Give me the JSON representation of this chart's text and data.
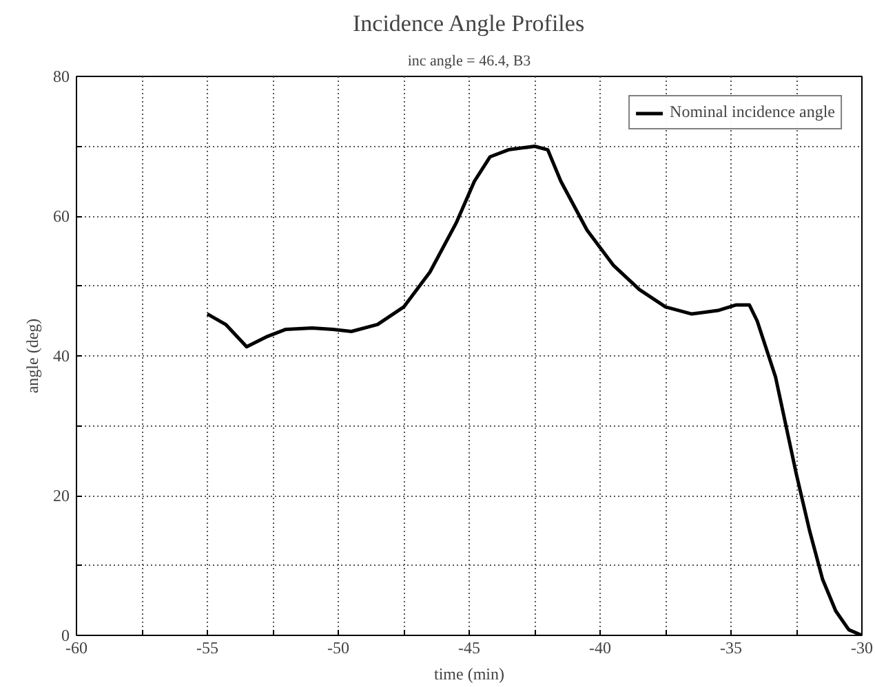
{
  "chart_data": {
    "type": "line",
    "title": "Incidence Angle Profiles",
    "subtitle": "inc angle = 46.4, B3",
    "xlabel": "time (min)",
    "ylabel": "angle (deg)",
    "xlim": [
      -60,
      -30
    ],
    "ylim": [
      0,
      80
    ],
    "xticks": [
      -60,
      {
        "value": -57.5,
        "label": null
      },
      -55,
      {
        "value": -52.5,
        "label": null
      },
      -50,
      {
        "value": -47.5,
        "label": null
      },
      -45,
      {
        "value": -42.5,
        "label": null
      },
      -40,
      {
        "value": -37.5,
        "label": null
      },
      -35,
      {
        "value": -32.5,
        "label": null
      },
      -30
    ],
    "yticks": [
      0,
      {
        "value": 10,
        "label": null
      },
      20,
      {
        "value": 30,
        "label": null
      },
      40,
      {
        "value": 50,
        "label": null
      },
      60,
      {
        "value": 70,
        "label": null
      },
      80
    ],
    "grid": true,
    "legend": "top right",
    "line_style": "solid",
    "marker": "none",
    "x": [
      -55,
      -54.3,
      -53.5,
      -52.7,
      -52,
      -51,
      -50.2,
      -49.5,
      -48.5,
      -47.5,
      -46.5,
      -45.5,
      -44.8,
      -44.2,
      -43.5,
      -42.5,
      -42,
      -41.5,
      -40.5,
      -39.5,
      -38.5,
      -37.5,
      -36.5,
      -35.5,
      -34.8,
      -34.3,
      -34,
      -33.3,
      -32.5,
      -32,
      -31.5,
      -31,
      -30.5,
      -30
    ],
    "series": [
      {
        "name": "Nominal incidence angle",
        "color": "#000000",
        "values": [
          46,
          44.5,
          41.3,
          42.8,
          43.8,
          44,
          43.8,
          43.5,
          44.5,
          47,
          52,
          59,
          65,
          68.5,
          69.5,
          70,
          69.5,
          65,
          58,
          53,
          49.5,
          47,
          46,
          46.5,
          47.3,
          47.3,
          45,
          37,
          23,
          15,
          8,
          3.5,
          0.8,
          0
        ]
      }
    ]
  }
}
